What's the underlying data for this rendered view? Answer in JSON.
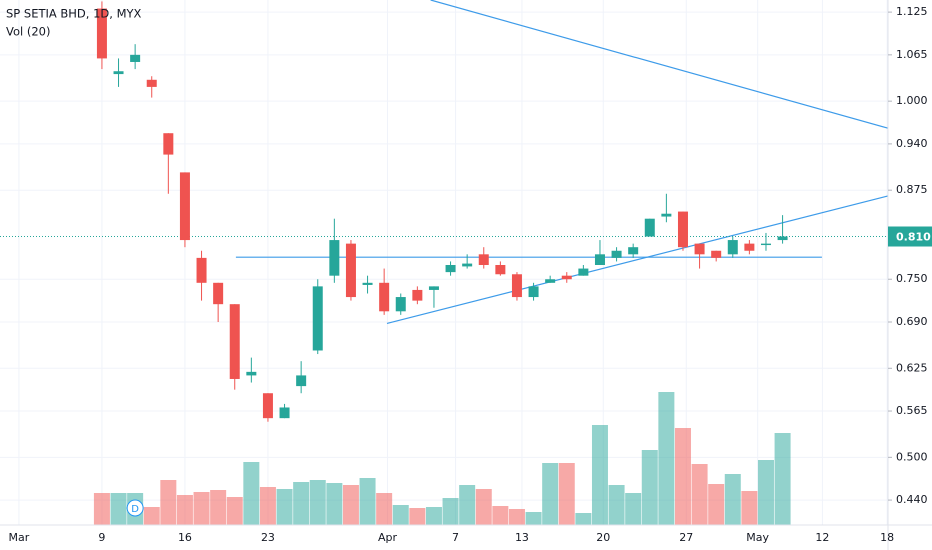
{
  "chart_data": {
    "type": "candlestick",
    "title": "SP SETIA BHD, 1D, MYX",
    "volume_label": "Vol (20)",
    "x": [
      5,
      6,
      7,
      8,
      9,
      10,
      11,
      12,
      13,
      14,
      15,
      16,
      17,
      18,
      19,
      20,
      21,
      22,
      23,
      24,
      25,
      26,
      27,
      28,
      29,
      30,
      31,
      32,
      33,
      34,
      35,
      36,
      37,
      38,
      39,
      40,
      41,
      42,
      43,
      44,
      45,
      46
    ],
    "open": [
      1.13,
      1.038,
      1.055,
      1.03,
      0.955,
      0.9,
      0.78,
      0.745,
      0.715,
      0.615,
      0.59,
      0.555,
      0.6,
      0.65,
      0.755,
      0.8,
      0.742,
      0.745,
      0.705,
      0.735,
      0.735,
      0.76,
      0.768,
      0.785,
      0.77,
      0.757,
      0.725,
      0.745,
      0.755,
      0.755,
      0.77,
      0.78,
      0.785,
      0.81,
      0.838,
      0.845,
      0.8,
      0.79,
      0.785,
      0.8,
      0.798,
      0.805
    ],
    "high": [
      1.14,
      1.06,
      1.08,
      1.035,
      0.955,
      0.9,
      0.79,
      0.745,
      0.715,
      0.64,
      0.59,
      0.575,
      0.635,
      0.75,
      0.835,
      0.805,
      0.755,
      0.765,
      0.73,
      0.74,
      0.74,
      0.775,
      0.785,
      0.795,
      0.775,
      0.76,
      0.745,
      0.755,
      0.76,
      0.77,
      0.805,
      0.795,
      0.8,
      0.835,
      0.87,
      0.845,
      0.8,
      0.79,
      0.81,
      0.805,
      0.815,
      0.84
    ],
    "low": [
      1.045,
      1.02,
      1.045,
      1.005,
      0.87,
      0.795,
      0.72,
      0.69,
      0.595,
      0.605,
      0.55,
      0.555,
      0.59,
      0.645,
      0.745,
      0.72,
      0.73,
      0.7,
      0.7,
      0.715,
      0.71,
      0.755,
      0.765,
      0.765,
      0.755,
      0.72,
      0.72,
      0.745,
      0.745,
      0.755,
      0.77,
      0.775,
      0.78,
      0.81,
      0.83,
      0.79,
      0.765,
      0.775,
      0.78,
      0.785,
      0.79,
      0.8
    ],
    "close": [
      1.06,
      1.042,
      1.065,
      1.02,
      0.925,
      0.805,
      0.745,
      0.715,
      0.61,
      0.62,
      0.555,
      0.57,
      0.615,
      0.74,
      0.805,
      0.725,
      0.745,
      0.705,
      0.725,
      0.72,
      0.74,
      0.77,
      0.772,
      0.77,
      0.757,
      0.725,
      0.74,
      0.75,
      0.75,
      0.765,
      0.785,
      0.79,
      0.795,
      0.835,
      0.842,
      0.795,
      0.785,
      0.78,
      0.805,
      0.79,
      0.8,
      0.81
    ],
    "volume": [
      32,
      32,
      32,
      18,
      45,
      30,
      33,
      35,
      28,
      63,
      38,
      36,
      43,
      45,
      42,
      40,
      47,
      32,
      20,
      17,
      18,
      27,
      40,
      36,
      19,
      16,
      13,
      62,
      62,
      12,
      100,
      40,
      32,
      75,
      133,
      97,
      61,
      41,
      51,
      34,
      65,
      92
    ],
    "vlim": [
      0,
      150
    ],
    "up_color": "#26a69a",
    "down_color": "#ef5350",
    "xlim": [
      -1.14,
      52.35
    ],
    "xticks": [
      {
        "value": 0,
        "label": "Mar"
      },
      {
        "value": 5,
        "label": "9"
      },
      {
        "value": 10,
        "label": "16"
      },
      {
        "value": 15,
        "label": "23"
      },
      {
        "value": 22.2,
        "label": "Apr"
      },
      {
        "value": 26.3,
        "label": "7"
      },
      {
        "value": 30.3,
        "label": "13"
      },
      {
        "value": 35.2,
        "label": "20"
      },
      {
        "value": 40.2,
        "label": "27"
      },
      {
        "value": 44.5,
        "label": "May"
      },
      {
        "value": 48.4,
        "label": "12"
      },
      {
        "value": 52.3,
        "label": "18"
      }
    ],
    "ylim": [
      0.398,
      1.142
    ],
    "yticks": [
      1.125,
      1.065,
      {
        "value": 1,
        "label": "1.000"
      },
      {
        "value": 0.94,
        "label": "0.940"
      },
      0.875,
      {
        "value": 0.75,
        "label": "0.750"
      },
      {
        "value": 0.69,
        "label": "0.690"
      },
      0.625,
      0.565,
      {
        "value": 0.5,
        "label": "0.500"
      },
      {
        "value": 0.44,
        "label": "0.440"
      }
    ],
    "last_price": {
      "value": 0.81,
      "label": "0.810"
    },
    "trendlines": [
      {
        "x": [
          24.8,
          52.35
        ],
        "y": [
          1.142,
          0.962
        ]
      },
      {
        "x": [
          13.07,
          48.37
        ],
        "y": [
          0.781,
          0.781
        ]
      },
      {
        "x": [
          22.17,
          52.35
        ],
        "y": [
          0.688,
          0.867
        ]
      }
    ],
    "trendline_color": "#3d9be9",
    "markers": [
      {
        "x": 7,
        "label": "D"
      }
    ],
    "grid": true
  }
}
